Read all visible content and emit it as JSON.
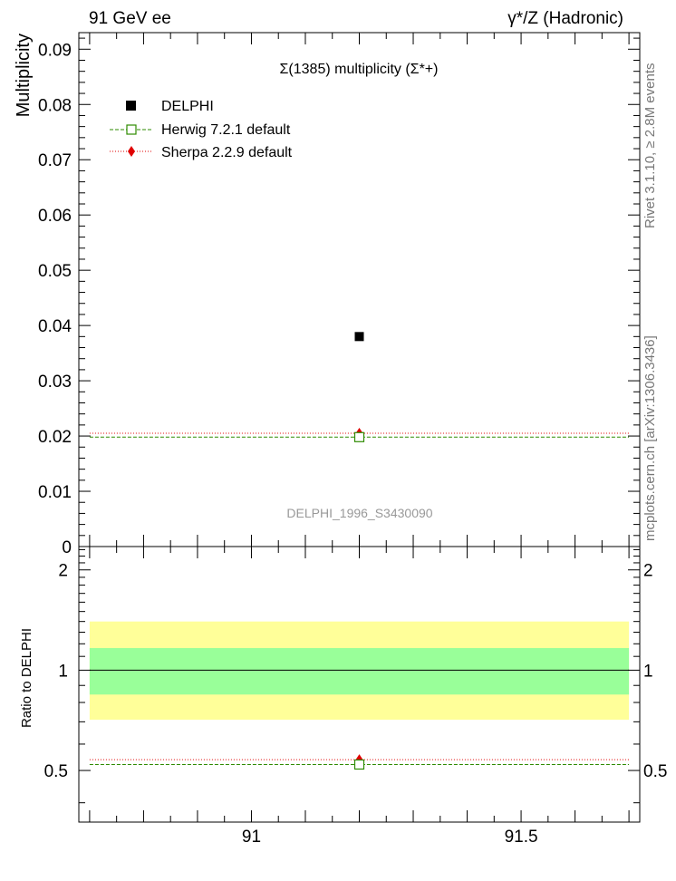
{
  "header": {
    "left_label": "91 GeV ee",
    "right_label": "γ*/Z (Hadronic)"
  },
  "side_text": {
    "rivet": "Rivet 3.1.10, ≥ 2.8M events",
    "mcplots": "mcplots.cern.ch [arXiv:1306.3436]"
  },
  "chart_data": [
    {
      "type": "scatter",
      "title": "Σ(1385) multiplicity (Σ*+)",
      "ylabel": "Multiplicity",
      "analysis_id": "DELPHI_1996_S3430090",
      "xlim": [
        90.68,
        91.72
      ],
      "ylim": [
        0,
        0.093
      ],
      "yticks": [
        "0",
        "0.01",
        "0.02",
        "0.03",
        "0.04",
        "0.05",
        "0.06",
        "0.07",
        "0.08",
        "0.09"
      ],
      "legend_position": "top-left",
      "series": [
        {
          "name": "DELPHI",
          "x": [
            91.2
          ],
          "y": [
            0.038
          ],
          "color": "#000000",
          "marker": "filled-square"
        },
        {
          "name": "Herwig 7.2.1 default",
          "x": [
            91.2
          ],
          "y": [
            0.0198
          ],
          "color": "#2e8b00",
          "marker": "open-square",
          "line": "dashed",
          "xrange": [
            90.7,
            91.7
          ]
        },
        {
          "name": "Sherpa 2.2.9 default",
          "x": [
            91.2
          ],
          "y": [
            0.0205
          ],
          "color": "#e00000",
          "marker": "filled-diamond",
          "line": "dotted",
          "xrange": [
            90.7,
            91.7
          ]
        }
      ]
    },
    {
      "type": "scatter",
      "ylabel": "Ratio to DELPHI",
      "xlim": [
        90.68,
        91.72
      ],
      "ylim": [
        0.35,
        2.35
      ],
      "yticks": [
        "0.5",
        "1",
        "2"
      ],
      "xticks": [
        "91",
        "91.5"
      ],
      "bands": [
        {
          "name": "outer",
          "lower": 0.71,
          "upper": 1.4,
          "color": "#ffff99"
        },
        {
          "name": "inner",
          "lower": 0.845,
          "upper": 1.165,
          "color": "#99ff99"
        }
      ],
      "reference_line": 1,
      "series": [
        {
          "name": "Herwig 7.2.1 default",
          "x": [
            91.2
          ],
          "y": [
            0.521
          ],
          "color": "#2e8b00",
          "marker": "open-square",
          "line": "dashed"
        },
        {
          "name": "Sherpa 2.2.9 default",
          "x": [
            91.2
          ],
          "y": [
            0.539
          ],
          "color": "#e00000",
          "marker": "filled-diamond",
          "line": "dotted"
        }
      ]
    }
  ]
}
